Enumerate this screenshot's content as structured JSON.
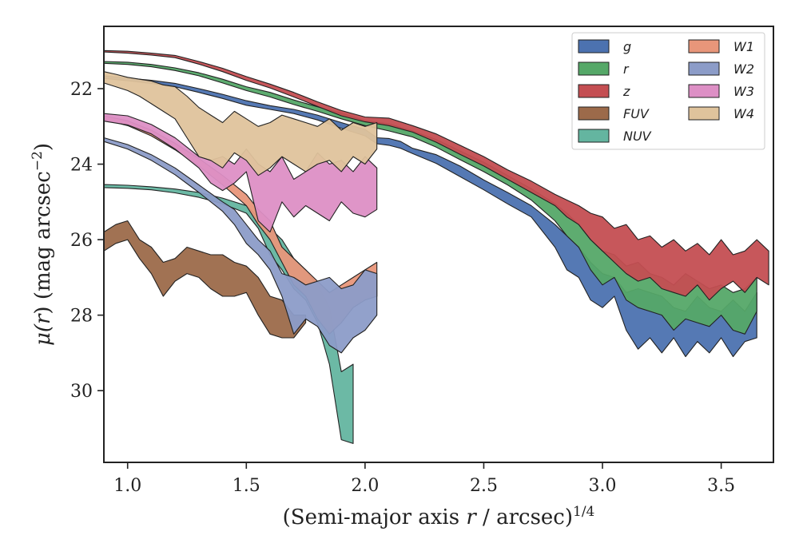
{
  "chart_data": {
    "type": "area",
    "title": "",
    "xlabel_main": "(Semi-major axis ",
    "xlabel_var": "r",
    "xlabel_unit": " / arcsec)",
    "xlabel_exp": "1/4",
    "ylabel_main": "μ(",
    "ylabel_var": "r",
    "ylabel_unit": ") (mag arcsec",
    "ylabel_exp": "−2",
    "ylabel_close": ")",
    "xlim": [
      0.9,
      3.72
    ],
    "ylim": [
      31.9,
      20.35
    ],
    "y_inverted": true,
    "xticks": [
      1.0,
      1.5,
      2.0,
      2.5,
      3.0,
      3.5
    ],
    "xtick_labels": [
      "1.0",
      "1.5",
      "2.0",
      "2.5",
      "3.0",
      "3.5"
    ],
    "yticks": [
      22,
      24,
      26,
      28,
      30
    ],
    "ytick_labels": [
      "22",
      "24",
      "26",
      "28",
      "30"
    ],
    "grid": false,
    "legend_position": "top-right",
    "legend_columns": 2,
    "series": [
      {
        "name": "g",
        "color": "#4c72b0",
        "points": [
          [
            0.9,
            21.66,
            21.73
          ],
          [
            1.0,
            21.72,
            21.79
          ],
          [
            1.1,
            21.78,
            21.86
          ],
          [
            1.2,
            21.86,
            21.95
          ],
          [
            1.3,
            22.0,
            22.1
          ],
          [
            1.4,
            22.15,
            22.26
          ],
          [
            1.5,
            22.32,
            22.44
          ],
          [
            1.6,
            22.45,
            22.55
          ],
          [
            1.7,
            22.55,
            22.66
          ],
          [
            1.8,
            22.7,
            22.83
          ],
          [
            1.9,
            22.9,
            23.05
          ],
          [
            2.0,
            23.08,
            23.25
          ],
          [
            2.05,
            23.3,
            23.46
          ],
          [
            2.1,
            23.32,
            23.5
          ],
          [
            2.15,
            23.4,
            23.58
          ],
          [
            2.2,
            23.58,
            23.72
          ],
          [
            2.3,
            23.75,
            23.98
          ],
          [
            2.4,
            24.05,
            24.33
          ],
          [
            2.5,
            24.42,
            24.68
          ],
          [
            2.6,
            24.75,
            25.05
          ],
          [
            2.7,
            25.1,
            25.4
          ],
          [
            2.8,
            25.6,
            26.2
          ],
          [
            2.85,
            25.9,
            26.8
          ],
          [
            2.9,
            26.2,
            27.0
          ],
          [
            2.95,
            26.6,
            27.6
          ],
          [
            3.0,
            26.9,
            27.8
          ],
          [
            3.05,
            27.0,
            27.5
          ],
          [
            3.1,
            27.4,
            28.4
          ],
          [
            3.15,
            27.3,
            28.9
          ],
          [
            3.2,
            27.4,
            28.6
          ],
          [
            3.25,
            27.5,
            29.0
          ],
          [
            3.3,
            27.8,
            28.6
          ],
          [
            3.35,
            27.9,
            29.1
          ],
          [
            3.4,
            27.5,
            28.7
          ],
          [
            3.45,
            27.8,
            29.0
          ],
          [
            3.5,
            27.9,
            28.6
          ],
          [
            3.55,
            27.6,
            29.1
          ],
          [
            3.6,
            27.9,
            28.7
          ],
          [
            3.65,
            27.4,
            28.6
          ]
        ]
      },
      {
        "name": "r",
        "color": "#55a868",
        "points": [
          [
            0.9,
            21.28,
            21.33
          ],
          [
            1.0,
            21.3,
            21.36
          ],
          [
            1.1,
            21.36,
            21.42
          ],
          [
            1.2,
            21.45,
            21.52
          ],
          [
            1.3,
            21.58,
            21.66
          ],
          [
            1.4,
            21.75,
            21.85
          ],
          [
            1.5,
            21.95,
            22.05
          ],
          [
            1.6,
            22.1,
            22.22
          ],
          [
            1.7,
            22.3,
            22.42
          ],
          [
            1.8,
            22.48,
            22.6
          ],
          [
            1.9,
            22.65,
            22.8
          ],
          [
            2.0,
            22.85,
            22.98
          ],
          [
            2.1,
            22.93,
            23.12
          ],
          [
            2.2,
            23.12,
            23.28
          ],
          [
            2.3,
            23.35,
            23.55
          ],
          [
            2.4,
            23.65,
            23.88
          ],
          [
            2.5,
            23.95,
            24.2
          ],
          [
            2.6,
            24.3,
            24.55
          ],
          [
            2.7,
            24.65,
            24.95
          ],
          [
            2.8,
            25.05,
            25.5
          ],
          [
            2.85,
            25.3,
            25.9
          ],
          [
            2.9,
            25.6,
            26.2
          ],
          [
            2.95,
            26.0,
            26.8
          ],
          [
            3.0,
            26.3,
            27.2
          ],
          [
            3.05,
            26.4,
            27.0
          ],
          [
            3.1,
            26.7,
            27.6
          ],
          [
            3.15,
            26.6,
            27.8
          ],
          [
            3.2,
            26.9,
            27.9
          ],
          [
            3.25,
            27.0,
            28.0
          ],
          [
            3.3,
            27.2,
            28.4
          ],
          [
            3.35,
            26.9,
            28.1
          ],
          [
            3.4,
            27.1,
            28.2
          ],
          [
            3.45,
            27.3,
            28.3
          ],
          [
            3.5,
            27.2,
            28.0
          ],
          [
            3.55,
            27.4,
            28.4
          ],
          [
            3.6,
            27.3,
            28.5
          ],
          [
            3.65,
            27.0,
            27.9
          ]
        ]
      },
      {
        "name": "z",
        "color": "#c44e52",
        "points": [
          [
            0.9,
            20.99,
            21.03
          ],
          [
            1.0,
            21.01,
            21.06
          ],
          [
            1.1,
            21.06,
            21.11
          ],
          [
            1.2,
            21.12,
            21.18
          ],
          [
            1.3,
            21.28,
            21.35
          ],
          [
            1.4,
            21.46,
            21.55
          ],
          [
            1.5,
            21.68,
            21.78
          ],
          [
            1.6,
            21.88,
            21.98
          ],
          [
            1.7,
            22.1,
            22.22
          ],
          [
            1.8,
            22.35,
            22.47
          ],
          [
            1.9,
            22.58,
            22.72
          ],
          [
            2.0,
            22.75,
            22.88
          ],
          [
            2.1,
            22.78,
            22.98
          ],
          [
            2.2,
            22.98,
            23.15
          ],
          [
            2.3,
            23.2,
            23.42
          ],
          [
            2.4,
            23.5,
            23.74
          ],
          [
            2.5,
            23.8,
            24.05
          ],
          [
            2.6,
            24.15,
            24.4
          ],
          [
            2.7,
            24.45,
            24.75
          ],
          [
            2.8,
            24.8,
            25.1
          ],
          [
            2.85,
            24.95,
            25.4
          ],
          [
            2.9,
            25.1,
            25.6
          ],
          [
            2.95,
            25.3,
            26.0
          ],
          [
            3.0,
            25.4,
            26.3
          ],
          [
            3.05,
            25.7,
            26.6
          ],
          [
            3.1,
            25.6,
            26.9
          ],
          [
            3.15,
            26.0,
            27.1
          ],
          [
            3.2,
            25.9,
            27.0
          ],
          [
            3.25,
            26.2,
            27.3
          ],
          [
            3.3,
            26.0,
            27.4
          ],
          [
            3.35,
            26.3,
            27.5
          ],
          [
            3.4,
            26.1,
            27.2
          ],
          [
            3.45,
            26.4,
            27.6
          ],
          [
            3.5,
            26.0,
            27.3
          ],
          [
            3.55,
            26.4,
            27.1
          ],
          [
            3.6,
            26.3,
            27.4
          ],
          [
            3.65,
            26.0,
            27.0
          ],
          [
            3.7,
            26.3,
            27.2
          ]
        ]
      },
      {
        "name": "FUV",
        "color": "#9c6a4a",
        "points": [
          [
            0.9,
            25.8,
            26.3
          ],
          [
            0.95,
            25.6,
            26.1
          ],
          [
            1.0,
            25.5,
            26.0
          ],
          [
            1.05,
            26.0,
            26.5
          ],
          [
            1.1,
            26.2,
            26.9
          ],
          [
            1.15,
            26.6,
            27.5
          ],
          [
            1.2,
            26.5,
            27.1
          ],
          [
            1.25,
            26.2,
            26.9
          ],
          [
            1.3,
            26.3,
            27.0
          ],
          [
            1.35,
            26.4,
            27.3
          ],
          [
            1.4,
            26.4,
            27.5
          ],
          [
            1.45,
            26.6,
            27.5
          ],
          [
            1.5,
            26.7,
            27.4
          ],
          [
            1.55,
            27.0,
            28.0
          ],
          [
            1.6,
            27.5,
            28.5
          ],
          [
            1.65,
            27.6,
            28.6
          ],
          [
            1.7,
            28.0,
            28.6
          ],
          [
            1.75,
            28.0,
            28.2
          ]
        ]
      },
      {
        "name": "NUV",
        "color": "#64b5a0",
        "points": [
          [
            0.9,
            24.54,
            24.62
          ],
          [
            1.0,
            24.56,
            24.64
          ],
          [
            1.1,
            24.6,
            24.68
          ],
          [
            1.2,
            24.66,
            24.76
          ],
          [
            1.3,
            24.75,
            24.88
          ],
          [
            1.4,
            24.9,
            25.05
          ],
          [
            1.5,
            25.1,
            25.3
          ],
          [
            1.55,
            25.4,
            25.7
          ],
          [
            1.6,
            25.7,
            26.4
          ],
          [
            1.65,
            26.0,
            26.8
          ],
          [
            1.7,
            26.5,
            27.3
          ],
          [
            1.75,
            26.8,
            27.6
          ],
          [
            1.8,
            27.2,
            28.2
          ],
          [
            1.85,
            27.8,
            29.3
          ],
          [
            1.9,
            29.5,
            31.3
          ],
          [
            1.95,
            29.3,
            31.4
          ]
        ]
      },
      {
        "name": "W1",
        "color": "#e8967a",
        "points": [
          [
            0.9,
            22.72,
            22.82
          ],
          [
            1.0,
            22.85,
            22.98
          ],
          [
            1.1,
            23.1,
            23.25
          ],
          [
            1.2,
            23.45,
            23.62
          ],
          [
            1.3,
            23.85,
            24.05
          ],
          [
            1.4,
            24.3,
            24.55
          ],
          [
            1.5,
            24.8,
            25.1
          ],
          [
            1.55,
            25.2,
            25.6
          ],
          [
            1.6,
            25.5,
            26.0
          ],
          [
            1.65,
            26.2,
            26.6
          ],
          [
            1.7,
            26.5,
            27.2
          ],
          [
            1.75,
            26.8,
            27.5
          ],
          [
            1.8,
            27.1,
            28.1
          ],
          [
            1.85,
            27.4,
            28.5
          ],
          [
            1.9,
            27.2,
            28.2
          ],
          [
            1.95,
            27.0,
            27.8
          ],
          [
            2.0,
            26.8,
            27.6
          ],
          [
            2.05,
            26.6,
            27.5
          ]
        ]
      },
      {
        "name": "W2",
        "color": "#8c9cc8",
        "points": [
          [
            0.9,
            23.3,
            23.4
          ],
          [
            1.0,
            23.48,
            23.6
          ],
          [
            1.1,
            23.75,
            23.9
          ],
          [
            1.2,
            24.1,
            24.28
          ],
          [
            1.3,
            24.55,
            24.75
          ],
          [
            1.4,
            25.0,
            25.25
          ],
          [
            1.45,
            25.2,
            25.6
          ],
          [
            1.5,
            25.6,
            26.1
          ],
          [
            1.55,
            26.0,
            26.4
          ],
          [
            1.6,
            26.3,
            26.8
          ],
          [
            1.65,
            26.9,
            27.5
          ],
          [
            1.7,
            27.0,
            28.5
          ],
          [
            1.75,
            27.2,
            28.1
          ],
          [
            1.8,
            27.1,
            28.3
          ],
          [
            1.85,
            27.0,
            28.8
          ],
          [
            1.9,
            27.3,
            29.0
          ],
          [
            1.95,
            27.2,
            28.6
          ],
          [
            2.0,
            26.8,
            28.4
          ],
          [
            2.05,
            26.9,
            28.0
          ]
        ]
      },
      {
        "name": "W3",
        "color": "#dd8fc5",
        "points": [
          [
            0.9,
            22.66,
            22.86
          ],
          [
            1.0,
            22.72,
            22.96
          ],
          [
            1.1,
            22.95,
            23.2
          ],
          [
            1.2,
            23.3,
            23.6
          ],
          [
            1.3,
            23.8,
            24.1
          ],
          [
            1.35,
            23.9,
            24.5
          ],
          [
            1.4,
            23.8,
            24.7
          ],
          [
            1.45,
            24.0,
            24.5
          ],
          [
            1.5,
            23.6,
            24.2
          ],
          [
            1.55,
            24.0,
            25.5
          ],
          [
            1.6,
            24.2,
            25.8
          ],
          [
            1.65,
            23.8,
            25.0
          ],
          [
            1.7,
            24.4,
            25.4
          ],
          [
            1.75,
            24.2,
            25.1
          ],
          [
            1.8,
            23.7,
            25.3
          ],
          [
            1.85,
            24.0,
            25.5
          ],
          [
            1.9,
            23.9,
            25.0
          ],
          [
            1.95,
            24.2,
            25.3
          ],
          [
            2.0,
            23.8,
            25.4
          ],
          [
            2.05,
            24.1,
            25.2
          ]
        ]
      },
      {
        "name": "W4",
        "color": "#dfc39c",
        "points": [
          [
            0.9,
            21.55,
            21.85
          ],
          [
            0.95,
            21.62,
            21.95
          ],
          [
            1.0,
            21.7,
            22.05
          ],
          [
            1.05,
            21.75,
            22.2
          ],
          [
            1.1,
            21.8,
            22.4
          ],
          [
            1.15,
            21.9,
            22.6
          ],
          [
            1.2,
            21.95,
            22.8
          ],
          [
            1.25,
            22.2,
            23.3
          ],
          [
            1.3,
            22.5,
            23.8
          ],
          [
            1.35,
            22.7,
            23.9
          ],
          [
            1.4,
            22.9,
            24.1
          ],
          [
            1.45,
            22.6,
            23.7
          ],
          [
            1.5,
            22.8,
            23.9
          ],
          [
            1.55,
            23.0,
            24.3
          ],
          [
            1.6,
            22.9,
            24.1
          ],
          [
            1.65,
            22.7,
            23.8
          ],
          [
            1.7,
            22.8,
            24.0
          ],
          [
            1.75,
            22.9,
            24.2
          ],
          [
            1.8,
            23.0,
            24.0
          ],
          [
            1.85,
            22.8,
            23.9
          ],
          [
            1.9,
            23.1,
            24.2
          ],
          [
            1.95,
            22.9,
            23.8
          ],
          [
            2.0,
            23.0,
            24.0
          ],
          [
            2.05,
            22.9,
            23.6
          ]
        ]
      }
    ]
  }
}
